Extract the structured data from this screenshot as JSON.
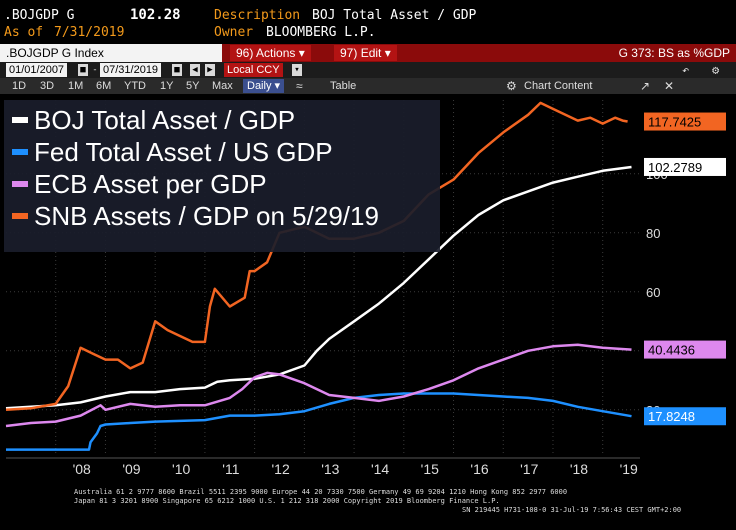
{
  "header": {
    "ticker": ".BOJGDP G",
    "value": "102.28",
    "description_label": "Description",
    "description": "BOJ Total Asset / GDP",
    "asof_label": "As of",
    "asof": "7/31/2019",
    "owner_label": "Owner",
    "owner": "BLOOMBERG L.P."
  },
  "toolbar": {
    "index": ".BOJGDP G Index",
    "actions_num": "96)",
    "actions": "Actions",
    "edit_num": "97)",
    "edit": "Edit",
    "right": "G 373: BS as %GDP"
  },
  "dates": {
    "start": "01/01/2007",
    "end": "07/31/2019",
    "currency": "Local CCY"
  },
  "ranges": {
    "items": [
      "1D",
      "3D",
      "1M",
      "6M",
      "YTD",
      "1Y",
      "5Y",
      "Max"
    ],
    "frequency": "Daily",
    "table": "Table",
    "chart_content": "Chart Content"
  },
  "chart_data": {
    "type": "line",
    "x_ticks": [
      "'08",
      "'09",
      "'10",
      "'11",
      "'12",
      "'13",
      "'14",
      "'15",
      "'16",
      "'17",
      "'18",
      "'19"
    ],
    "y_ticks": [
      "20",
      "40",
      "60",
      "80",
      "100"
    ],
    "ylim": [
      5,
      125
    ],
    "xlim": [
      2007.0,
      2019.75
    ],
    "legend_position": "top-left",
    "grid": true,
    "series": [
      {
        "name": "BOJ Total Asset / GDP",
        "color": "#ffffff",
        "last": "102.2789",
        "points": [
          [
            2007.0,
            20.5
          ],
          [
            2008.0,
            21.5
          ],
          [
            2008.5,
            22.5
          ],
          [
            2009.0,
            24.5
          ],
          [
            2009.5,
            26
          ],
          [
            2010.0,
            26
          ],
          [
            2010.5,
            27
          ],
          [
            2011.0,
            27.5
          ],
          [
            2011.25,
            29.5
          ],
          [
            2011.5,
            30
          ],
          [
            2012.0,
            30.5
          ],
          [
            2012.5,
            32
          ],
          [
            2013.0,
            35
          ],
          [
            2013.25,
            40
          ],
          [
            2013.5,
            44
          ],
          [
            2014.0,
            50
          ],
          [
            2014.5,
            56
          ],
          [
            2015.0,
            63
          ],
          [
            2015.5,
            71
          ],
          [
            2016.0,
            79
          ],
          [
            2016.5,
            86
          ],
          [
            2017.0,
            91
          ],
          [
            2017.5,
            94
          ],
          [
            2018.0,
            97
          ],
          [
            2018.5,
            99
          ],
          [
            2019.0,
            101
          ],
          [
            2019.58,
            102.3
          ]
        ]
      },
      {
        "name": "Fed Total Asset / US GDP",
        "color": "#1e90ff",
        "last": "17.8248",
        "points": [
          [
            2007.0,
            6.5
          ],
          [
            2008.67,
            6.5
          ],
          [
            2008.7,
            9
          ],
          [
            2008.83,
            12
          ],
          [
            2008.9,
            14.5
          ],
          [
            2009.0,
            15
          ],
          [
            2009.5,
            15.5
          ],
          [
            2010.0,
            16
          ],
          [
            2011.0,
            16.5
          ],
          [
            2011.5,
            18
          ],
          [
            2012.0,
            18
          ],
          [
            2012.5,
            18.5
          ],
          [
            2013.0,
            19.5
          ],
          [
            2013.5,
            22
          ],
          [
            2014.0,
            24
          ],
          [
            2014.5,
            25
          ],
          [
            2015.0,
            25.5
          ],
          [
            2016.0,
            25.5
          ],
          [
            2016.5,
            25
          ],
          [
            2017.0,
            24.5
          ],
          [
            2017.5,
            24
          ],
          [
            2018.0,
            23
          ],
          [
            2018.5,
            21
          ],
          [
            2019.0,
            19.5
          ],
          [
            2019.58,
            17.8
          ]
        ]
      },
      {
        "name": "ECB Asset per GDP",
        "color": "#dd88ee",
        "last": "40.4436",
        "points": [
          [
            2007.0,
            14.5
          ],
          [
            2007.5,
            15.5
          ],
          [
            2008.0,
            16
          ],
          [
            2008.5,
            18
          ],
          [
            2008.9,
            21.5
          ],
          [
            2009.0,
            20
          ],
          [
            2009.5,
            22
          ],
          [
            2010.0,
            21
          ],
          [
            2010.5,
            21.5
          ],
          [
            2011.0,
            21.5
          ],
          [
            2011.5,
            24
          ],
          [
            2011.75,
            27
          ],
          [
            2012.0,
            31
          ],
          [
            2012.25,
            32.5
          ],
          [
            2012.5,
            32
          ],
          [
            2013.0,
            29
          ],
          [
            2013.5,
            25
          ],
          [
            2014.0,
            24
          ],
          [
            2014.5,
            23
          ],
          [
            2015.0,
            24.5
          ],
          [
            2015.5,
            27
          ],
          [
            2016.0,
            30
          ],
          [
            2016.5,
            34
          ],
          [
            2017.0,
            37
          ],
          [
            2017.5,
            40
          ],
          [
            2018.0,
            41.5
          ],
          [
            2018.5,
            42
          ],
          [
            2019.0,
            41
          ],
          [
            2019.58,
            40.4
          ]
        ]
      },
      {
        "name": "SNB Assets / GDP on 5/29/19",
        "color": "#f26522",
        "last": "117.7425",
        "points": [
          [
            2007.0,
            20
          ],
          [
            2007.5,
            20.5
          ],
          [
            2008.0,
            22
          ],
          [
            2008.25,
            28
          ],
          [
            2008.5,
            41
          ],
          [
            2008.75,
            39
          ],
          [
            2009.0,
            37
          ],
          [
            2009.25,
            37
          ],
          [
            2009.5,
            34
          ],
          [
            2009.75,
            36
          ],
          [
            2010.0,
            50
          ],
          [
            2010.25,
            47
          ],
          [
            2010.5,
            45
          ],
          [
            2010.75,
            43
          ],
          [
            2011.0,
            43
          ],
          [
            2011.1,
            55
          ],
          [
            2011.2,
            61
          ],
          [
            2011.5,
            55
          ],
          [
            2011.8,
            58
          ],
          [
            2011.9,
            67
          ],
          [
            2012.0,
            67
          ],
          [
            2012.25,
            70
          ],
          [
            2012.5,
            80
          ],
          [
            2012.75,
            81
          ],
          [
            2013.0,
            82
          ],
          [
            2013.5,
            78
          ],
          [
            2014.0,
            78
          ],
          [
            2014.5,
            80
          ],
          [
            2015.0,
            84
          ],
          [
            2015.5,
            93
          ],
          [
            2016.0,
            98
          ],
          [
            2016.5,
            107
          ],
          [
            2017.0,
            114
          ],
          [
            2017.5,
            120
          ],
          [
            2017.75,
            124
          ],
          [
            2018.0,
            122
          ],
          [
            2018.25,
            120
          ],
          [
            2018.5,
            118
          ],
          [
            2018.75,
            119
          ],
          [
            2019.0,
            117
          ],
          [
            2019.25,
            119
          ],
          [
            2019.4,
            118
          ],
          [
            2019.5,
            117.7
          ]
        ]
      }
    ]
  },
  "footer": {
    "line1": "Australia 61 2 9777 8600 Brazil 5511 2395 9000 Europe 44 20 7330 7500 Germany 49 69 9204 1210 Hong Kong 852 2977 6000",
    "line2": "Japan 81 3 3201 8900      Singapore 65 6212 1000     U.S. 1 212 318 2000          Copyright 2019 Bloomberg Finance L.P.",
    "line3": "SN 219445 H731-108-0 31-Jul-19  7:56:43 CEST GMT+2:00"
  }
}
